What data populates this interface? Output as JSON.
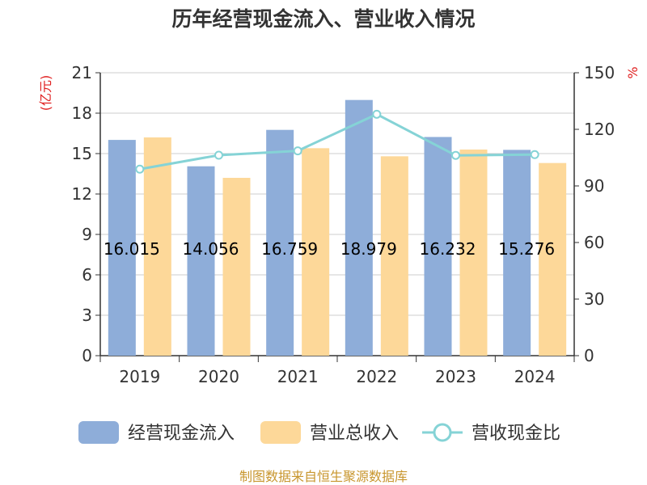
{
  "chart_data": {
    "title": "历年经营现金流入、营业收入情况",
    "type": "bar",
    "categories": [
      "2019",
      "2020",
      "2021",
      "2022",
      "2023",
      "2024"
    ],
    "left_axis": {
      "unit": "(亿元)",
      "ylim": [
        0,
        21
      ],
      "ticks": [
        "0",
        "3",
        "6",
        "9",
        "12",
        "15",
        "18",
        "21"
      ]
    },
    "right_axis": {
      "unit": "%",
      "ylim": [
        0,
        150
      ],
      "ticks": [
        "0",
        "30",
        "60",
        "90",
        "120",
        "150"
      ]
    },
    "series": [
      {
        "name": "经营现金流入",
        "type": "bar",
        "axis": "left",
        "color": "#8eadd9",
        "values": [
          16.015,
          14.056,
          16.759,
          18.979,
          16.232,
          15.276
        ],
        "labels": [
          "16.015",
          "14.056",
          "16.759",
          "18.979",
          "16.232",
          "15.276"
        ]
      },
      {
        "name": "营业总收入",
        "type": "bar",
        "axis": "left",
        "color": "#fdd899",
        "values": [
          16.2,
          13.2,
          15.4,
          14.8,
          15.3,
          14.3
        ]
      },
      {
        "name": "营收现金比",
        "type": "line",
        "axis": "right",
        "color": "#85d3d6",
        "values": [
          98.9,
          106.3,
          108.6,
          128.0,
          106.2,
          106.6
        ]
      }
    ],
    "grid": true,
    "legend_position": "bottom"
  },
  "source_note": "制图数据来自恒生聚源数据库"
}
